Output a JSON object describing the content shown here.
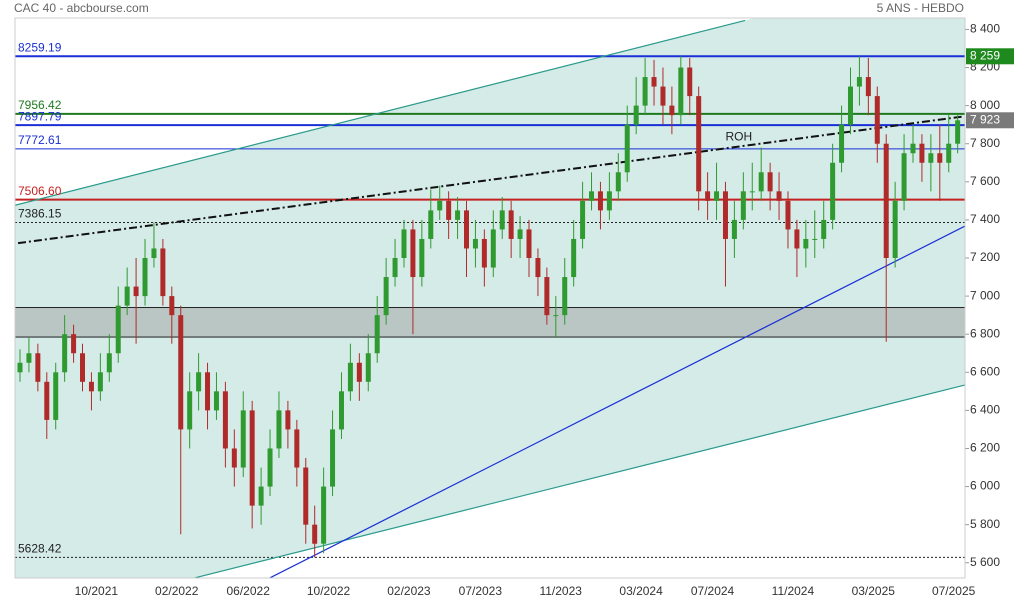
{
  "chart_data": {
    "type": "candlestick",
    "title": "CAC 40 - abcbourse.com",
    "subtitle": "5 ANS - HEBDO",
    "categories": [
      null,
      null,
      null,
      null,
      null,
      null,
      null,
      null,
      null,
      "10/2021",
      null,
      null,
      null,
      null,
      null,
      null,
      null,
      null,
      "02/2022",
      null,
      null,
      null,
      null,
      null,
      null,
      null,
      "06/2022",
      null,
      null,
      null,
      null,
      null,
      null,
      null,
      null,
      "10/2022",
      null,
      null,
      null,
      null,
      null,
      null,
      null,
      null,
      "02/2023",
      null,
      null,
      null,
      null,
      null,
      null,
      null,
      "07/2023",
      null,
      null,
      null,
      null,
      null,
      null,
      null,
      null,
      "11/2023",
      null,
      null,
      null,
      null,
      null,
      null,
      null,
      null,
      "03/2024",
      null,
      null,
      null,
      null,
      null,
      null,
      null,
      "07/2024",
      null,
      null,
      null,
      null,
      null,
      null,
      null,
      null,
      "11/2024",
      null,
      null,
      null,
      null,
      null,
      null,
      null,
      null,
      "03/2025",
      null,
      null,
      null,
      null,
      null,
      null,
      null,
      null,
      "07/2025"
    ],
    "open": [
      6600,
      6650,
      6700,
      6550,
      6350,
      6600,
      6800,
      6700,
      6550,
      6500,
      6600,
      6700,
      6950,
      7050,
      7000,
      7200,
      7250,
      7000,
      6900,
      6300,
      6500,
      6600,
      6400,
      6500,
      6200,
      6100,
      6400,
      5900,
      6000,
      6200,
      6400,
      6300,
      6100,
      5800,
      5700,
      6000,
      6300,
      6500,
      6650,
      6550,
      6700,
      6900,
      7100,
      7200,
      7350,
      7100,
      7300,
      7450,
      7500,
      7400,
      7450,
      7250,
      7300,
      7150,
      7350,
      7450,
      7300,
      7350,
      7200,
      7100,
      6900,
      6900,
      7100,
      7300,
      7500,
      7550,
      7450,
      7550,
      7650,
      7900,
      8000,
      8150,
      8100,
      8000,
      7950,
      8200,
      8050,
      7550,
      7500,
      7550,
      7300,
      7400,
      7550,
      7550,
      7650,
      7550,
      7500,
      7350,
      7250,
      7300,
      7300,
      7400,
      7700,
      7900,
      8100,
      8150,
      8050,
      7800,
      7200,
      7500,
      7750,
      7800,
      7700,
      7750,
      7700,
      7800
    ],
    "high": [
      6720,
      6780,
      6750,
      6600,
      6650,
      6900,
      6850,
      6750,
      6600,
      6700,
      6800,
      7050,
      7150,
      7200,
      7300,
      7386,
      7300,
      7050,
      6950,
      6600,
      6700,
      6650,
      6600,
      6550,
      6300,
      6500,
      6450,
      6100,
      6300,
      6500,
      6450,
      6350,
      6150,
      5900,
      6100,
      6400,
      6600,
      6750,
      6700,
      6800,
      7000,
      7200,
      7300,
      7400,
      7400,
      7400,
      7560,
      7580,
      7550,
      7520,
      7500,
      7400,
      7350,
      7450,
      7520,
      7500,
      7420,
      7400,
      7250,
      7150,
      7000,
      7200,
      7400,
      7600,
      7650,
      7600,
      7650,
      7750,
      8000,
      8150,
      8250,
      8240,
      8200,
      8100,
      8259,
      8250,
      8100,
      7650,
      7700,
      7600,
      7500,
      7650,
      7700,
      7780,
      7700,
      7650,
      7550,
      7400,
      7400,
      7450,
      7500,
      7800,
      8000,
      8200,
      8259,
      8250,
      8100,
      7850,
      7600,
      7850,
      7900,
      7850,
      7850,
      7900,
      7956,
      7956
    ],
    "low": [
      6550,
      6600,
      6500,
      6250,
      6300,
      6550,
      6650,
      6500,
      6400,
      6450,
      6550,
      6650,
      6900,
      6750,
      6950,
      7150,
      6950,
      6750,
      5750,
      6200,
      6400,
      6300,
      6350,
      6100,
      6000,
      6050,
      5780,
      5800,
      5950,
      6150,
      6200,
      6000,
      5700,
      5628,
      5650,
      5950,
      6250,
      6450,
      6450,
      6500,
      6650,
      6850,
      7050,
      7150,
      6800,
      7050,
      7250,
      7400,
      7300,
      7300,
      7100,
      7150,
      7050,
      7100,
      7300,
      7200,
      7200,
      7100,
      7000,
      6850,
      6780,
      6850,
      7050,
      7250,
      7450,
      7350,
      7400,
      7500,
      7600,
      7850,
      7950,
      8000,
      7900,
      7850,
      7900,
      7950,
      7450,
      7400,
      7400,
      7050,
      7200,
      7350,
      7450,
      7500,
      7450,
      7400,
      7250,
      7100,
      7150,
      7200,
      7250,
      7350,
      7650,
      7850,
      8000,
      7950,
      7700,
      6760,
      7150,
      7450,
      7700,
      7600,
      7550,
      7500,
      7650,
      7750
    ],
    "close": [
      6650,
      6700,
      6550,
      6350,
      6600,
      6800,
      6700,
      6550,
      6500,
      6600,
      6700,
      6950,
      7050,
      7000,
      7200,
      7250,
      7000,
      6900,
      6300,
      6500,
      6600,
      6400,
      6500,
      6200,
      6100,
      6400,
      5900,
      6000,
      6200,
      6400,
      6300,
      6100,
      5800,
      5700,
      6000,
      6300,
      6500,
      6650,
      6550,
      6700,
      6900,
      7100,
      7200,
      7350,
      7100,
      7300,
      7450,
      7500,
      7400,
      7450,
      7250,
      7300,
      7150,
      7350,
      7450,
      7300,
      7350,
      7200,
      7100,
      6900,
      6900,
      7100,
      7300,
      7500,
      7550,
      7450,
      7550,
      7650,
      7900,
      8000,
      8150,
      8100,
      8000,
      7950,
      8200,
      8050,
      7550,
      7500,
      7550,
      7300,
      7400,
      7550,
      7550,
      7650,
      7550,
      7500,
      7350,
      7250,
      7300,
      7300,
      7400,
      7700,
      7900,
      8100,
      8150,
      8050,
      7800,
      7200,
      7500,
      7750,
      7800,
      7700,
      7750,
      7700,
      7800,
      7923
    ],
    "up_color": "#2f9a2f",
    "down_color": "#b02a2a",
    "ylim": [
      5520,
      8460
    ],
    "yticks": [
      {
        "value": 5600,
        "label": "5 600"
      },
      {
        "value": 5800,
        "label": "5 800"
      },
      {
        "value": 6000,
        "label": "6 000"
      },
      {
        "value": 6200,
        "label": "6 200"
      },
      {
        "value": 6400,
        "label": "6 400"
      },
      {
        "value": 6600,
        "label": "6 600"
      },
      {
        "value": 6800,
        "label": "6 800"
      },
      {
        "value": 7000,
        "label": "7 000"
      },
      {
        "value": 7200,
        "label": "7 200"
      },
      {
        "value": 7400,
        "label": "7 400"
      },
      {
        "value": 7600,
        "label": "7 600"
      },
      {
        "value": 7800,
        "label": "7 800"
      },
      {
        "value": 8000,
        "label": "8 000"
      },
      {
        "value": 8200,
        "label": "8 200"
      },
      {
        "value": 8400,
        "label": "8 400"
      }
    ],
    "levels": [
      {
        "value": 8259.19,
        "label": "8259.19",
        "color": "#1a2fd6",
        "width": 2,
        "dotted": false
      },
      {
        "value": 7956.42,
        "label": "7956.42",
        "color": "#1f7a1f",
        "width": 2,
        "dotted": false
      },
      {
        "value": 7897.79,
        "label": "7897.79",
        "color": "#1a2fd6",
        "width": 2,
        "dotted": false
      },
      {
        "value": 7772.61,
        "label": "7772.61",
        "color": "#1a2fd6",
        "width": 1,
        "dotted": false
      },
      {
        "value": 7506.6,
        "label": "7506.60",
        "color": "#c42020",
        "width": 2,
        "dotted": false
      },
      {
        "value": 7386.15,
        "label": "7386.15",
        "color": "#222222",
        "width": 1,
        "dotted": true
      },
      {
        "value": 5628.42,
        "label": "5628.42",
        "color": "#222222",
        "width": 1,
        "dotted": true
      }
    ],
    "zone": [
      6785,
      6940
    ],
    "zone_color": "#b9c6c4",
    "channel_fill": "#d4ebe8",
    "trendlines": [
      {
        "x": [
          -0.56,
          81.2
        ],
        "y": [
          7477,
          8447
        ],
        "color": "#2a9a8c",
        "dash": false
      },
      {
        "x": [
          19.6,
          105.8
        ],
        "y": [
          5521,
          6533
        ],
        "color": "#2a9a8c",
        "dash": false
      },
      {
        "x": [
          28,
          105.8
        ],
        "y": [
          5521,
          7367
        ],
        "color": "#1a2fd6",
        "dash": false
      },
      {
        "x": [
          -0.22,
          105.8
        ],
        "y": [
          7278,
          7944
        ],
        "color": "#111111",
        "dash": true
      }
    ],
    "annotation": {
      "text": "ROH",
      "x": 80.5,
      "y": 7834
    },
    "tags": [
      {
        "value": 8259,
        "label": "8 259",
        "color": "#1e8a1e"
      },
      {
        "value": 7923,
        "label": "7 923",
        "color": "#7a7a7a"
      }
    ]
  }
}
